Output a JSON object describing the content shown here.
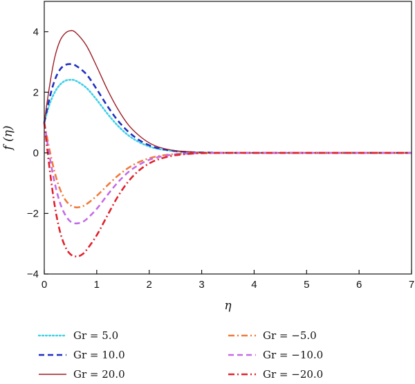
{
  "chart_data": {
    "type": "line",
    "title": "",
    "xlabel": "η",
    "ylabel": "f (η)",
    "xlim": [
      0,
      7
    ],
    "ylim": [
      -4,
      5
    ],
    "xticks": [
      0,
      1,
      2,
      3,
      4,
      5,
      6,
      7
    ],
    "yticks": [
      -4,
      -2,
      0,
      2,
      4
    ],
    "xtick_labels": [
      "0",
      "1",
      "2",
      "3",
      "4",
      "5",
      "6",
      "7"
    ],
    "ytick_labels": [
      "−4",
      "−2",
      "0",
      "2",
      "4"
    ],
    "grid": false,
    "legend_position": "bottom",
    "series": [
      {
        "name": "Gr = 5.0",
        "color": "#3fd0e8",
        "dash": "dotted",
        "x": [
          0,
          0.1,
          0.2,
          0.3,
          0.4,
          0.5,
          0.6,
          0.8,
          1.0,
          1.2,
          1.4,
          1.6,
          1.8,
          2.0,
          2.2,
          2.5,
          2.8,
          3.0,
          3.5,
          4.0,
          5.0,
          6.0,
          7.0
        ],
        "y": [
          1.0,
          1.6,
          2.0,
          2.25,
          2.38,
          2.41,
          2.38,
          2.15,
          1.75,
          1.3,
          0.9,
          0.58,
          0.36,
          0.21,
          0.12,
          0.05,
          0.02,
          0.01,
          0.0,
          0.0,
          0.0,
          0.0,
          0.0
        ]
      },
      {
        "name": "Gr = 10.0",
        "color": "#1f2fbf",
        "dash": "dashed",
        "x": [
          0,
          0.1,
          0.2,
          0.3,
          0.4,
          0.5,
          0.6,
          0.8,
          1.0,
          1.2,
          1.4,
          1.6,
          1.8,
          2.0,
          2.2,
          2.5,
          2.8,
          3.0,
          3.5,
          4.0,
          5.0,
          6.0,
          7.0
        ],
        "y": [
          1.0,
          1.8,
          2.4,
          2.75,
          2.9,
          2.93,
          2.88,
          2.6,
          2.1,
          1.55,
          1.07,
          0.7,
          0.43,
          0.25,
          0.14,
          0.06,
          0.02,
          0.01,
          0.0,
          0.0,
          0.0,
          0.0,
          0.0
        ]
      },
      {
        "name": "Gr = 20.0",
        "color": "#9b1b23",
        "dash": "solid",
        "x": [
          0,
          0.1,
          0.2,
          0.3,
          0.4,
          0.5,
          0.6,
          0.8,
          1.0,
          1.2,
          1.4,
          1.6,
          1.8,
          2.0,
          2.2,
          2.5,
          2.8,
          3.0,
          3.5,
          4.0,
          5.0,
          6.0,
          7.0
        ],
        "y": [
          1.0,
          2.2,
          3.15,
          3.7,
          3.95,
          4.03,
          3.97,
          3.55,
          2.85,
          2.1,
          1.45,
          0.93,
          0.58,
          0.33,
          0.18,
          0.07,
          0.03,
          0.01,
          0.0,
          0.0,
          0.0,
          0.0,
          0.0
        ]
      },
      {
        "name": "Gr = −5.0",
        "color": "#f07a3a",
        "dash": "dashdot",
        "x": [
          0,
          0.1,
          0.2,
          0.3,
          0.4,
          0.5,
          0.6,
          0.7,
          0.8,
          1.0,
          1.2,
          1.4,
          1.6,
          1.8,
          2.0,
          2.2,
          2.5,
          2.8,
          3.0,
          3.5,
          4.0,
          5.0,
          6.0,
          7.0
        ],
        "y": [
          1.0,
          0.1,
          -0.65,
          -1.2,
          -1.55,
          -1.73,
          -1.8,
          -1.78,
          -1.7,
          -1.42,
          -1.08,
          -0.76,
          -0.5,
          -0.31,
          -0.18,
          -0.1,
          -0.04,
          -0.02,
          -0.01,
          0.0,
          0.0,
          0.0,
          0.0,
          0.0
        ]
      },
      {
        "name": "Gr = −10.0",
        "color": "#c46ae8",
        "dash": "dashed",
        "x": [
          0,
          0.1,
          0.2,
          0.3,
          0.4,
          0.5,
          0.6,
          0.7,
          0.8,
          1.0,
          1.2,
          1.4,
          1.6,
          1.8,
          2.0,
          2.2,
          2.5,
          2.8,
          3.0,
          3.5,
          4.0,
          5.0,
          6.0,
          7.0
        ],
        "y": [
          1.0,
          -0.1,
          -1.0,
          -1.65,
          -2.05,
          -2.27,
          -2.33,
          -2.3,
          -2.2,
          -1.85,
          -1.4,
          -0.98,
          -0.64,
          -0.4,
          -0.23,
          -0.13,
          -0.05,
          -0.02,
          -0.01,
          0.0,
          0.0,
          0.0,
          0.0,
          0.0
        ]
      },
      {
        "name": "Gr = −20.0",
        "color": "#e0212c",
        "dash": "dashdot",
        "x": [
          0,
          0.1,
          0.2,
          0.3,
          0.4,
          0.5,
          0.6,
          0.7,
          0.8,
          1.0,
          1.2,
          1.4,
          1.6,
          1.8,
          2.0,
          2.2,
          2.5,
          2.8,
          3.0,
          3.5,
          4.0,
          5.0,
          6.0,
          7.0
        ],
        "y": [
          1.0,
          -0.5,
          -1.75,
          -2.6,
          -3.1,
          -3.35,
          -3.42,
          -3.38,
          -3.22,
          -2.72,
          -2.08,
          -1.45,
          -0.95,
          -0.59,
          -0.35,
          -0.2,
          -0.08,
          -0.03,
          -0.01,
          0.0,
          0.0,
          0.0,
          0.0,
          0.0
        ]
      }
    ]
  }
}
